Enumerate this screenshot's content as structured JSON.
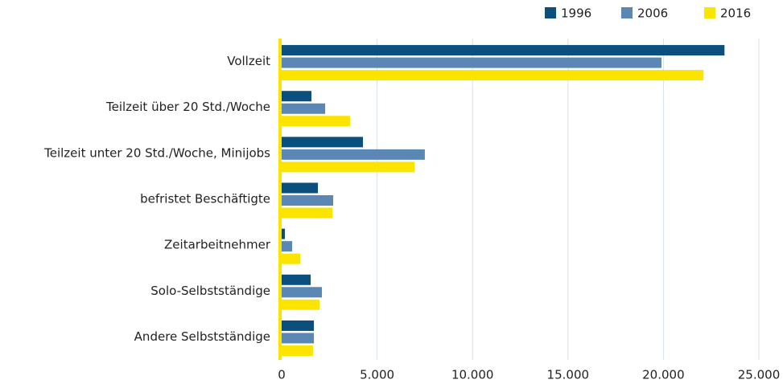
{
  "chart_data": {
    "type": "hbar",
    "categories": [
      "Vollzeit",
      "Teilzeit über 20 Std./Woche",
      "Teilzeit unter 20 Std./Woche, Minijobs",
      "befristet Beschäftigte",
      "Zeitarbeitnehmer",
      "Solo-Selbstständige",
      "Andere Selbstständige"
    ],
    "series": [
      {
        "name": "1996",
        "color": "#0b4f7e",
        "values": [
          23200,
          1560,
          4260,
          1900,
          170,
          1520,
          1690
        ]
      },
      {
        "name": "2006",
        "color": "#5b87b5",
        "values": [
          19900,
          2280,
          7500,
          2700,
          550,
          2110,
          1690
        ]
      },
      {
        "name": "2016",
        "color": "#fbe400",
        "values": [
          22100,
          3580,
          6960,
          2660,
          970,
          1980,
          1640
        ]
      }
    ],
    "xlim": [
      0,
      25000
    ],
    "xticks": [
      0,
      {
        "value": 5000,
        "label": "5.000"
      },
      {
        "value": 10000,
        "label": "10.000"
      },
      {
        "value": 15000,
        "label": "15.000"
      },
      {
        "value": 20000,
        "label": "20.000"
      },
      {
        "value": 25000,
        "label": "25.000"
      }
    ],
    "grid": true,
    "legend": "top-right"
  }
}
